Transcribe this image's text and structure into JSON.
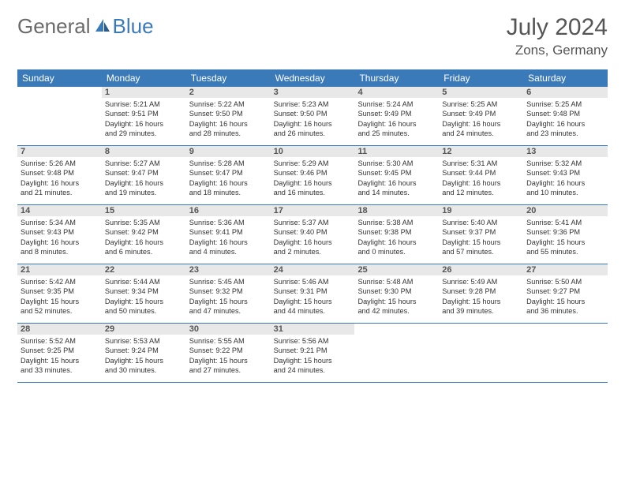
{
  "brand": {
    "part1": "General",
    "part2": "Blue"
  },
  "header": {
    "month_title": "July 2024",
    "location": "Zons, Germany"
  },
  "day_names": [
    "Sunday",
    "Monday",
    "Tuesday",
    "Wednesday",
    "Thursday",
    "Friday",
    "Saturday"
  ],
  "colors": {
    "accent": "#3b7ab8",
    "header_text": "#ffffff",
    "daybar": "#e8e8e8",
    "text": "#333333"
  },
  "layout": {
    "first_day_offset": 1,
    "days_in_month": 31
  },
  "days": [
    {
      "n": 1,
      "sunrise": "5:21 AM",
      "sunset": "9:51 PM",
      "dh": 16,
      "dm": 29
    },
    {
      "n": 2,
      "sunrise": "5:22 AM",
      "sunset": "9:50 PM",
      "dh": 16,
      "dm": 28
    },
    {
      "n": 3,
      "sunrise": "5:23 AM",
      "sunset": "9:50 PM",
      "dh": 16,
      "dm": 26
    },
    {
      "n": 4,
      "sunrise": "5:24 AM",
      "sunset": "9:49 PM",
      "dh": 16,
      "dm": 25
    },
    {
      "n": 5,
      "sunrise": "5:25 AM",
      "sunset": "9:49 PM",
      "dh": 16,
      "dm": 24
    },
    {
      "n": 6,
      "sunrise": "5:25 AM",
      "sunset": "9:48 PM",
      "dh": 16,
      "dm": 23
    },
    {
      "n": 7,
      "sunrise": "5:26 AM",
      "sunset": "9:48 PM",
      "dh": 16,
      "dm": 21
    },
    {
      "n": 8,
      "sunrise": "5:27 AM",
      "sunset": "9:47 PM",
      "dh": 16,
      "dm": 19
    },
    {
      "n": 9,
      "sunrise": "5:28 AM",
      "sunset": "9:47 PM",
      "dh": 16,
      "dm": 18
    },
    {
      "n": 10,
      "sunrise": "5:29 AM",
      "sunset": "9:46 PM",
      "dh": 16,
      "dm": 16
    },
    {
      "n": 11,
      "sunrise": "5:30 AM",
      "sunset": "9:45 PM",
      "dh": 16,
      "dm": 14
    },
    {
      "n": 12,
      "sunrise": "5:31 AM",
      "sunset": "9:44 PM",
      "dh": 16,
      "dm": 12
    },
    {
      "n": 13,
      "sunrise": "5:32 AM",
      "sunset": "9:43 PM",
      "dh": 16,
      "dm": 10
    },
    {
      "n": 14,
      "sunrise": "5:34 AM",
      "sunset": "9:43 PM",
      "dh": 16,
      "dm": 8
    },
    {
      "n": 15,
      "sunrise": "5:35 AM",
      "sunset": "9:42 PM",
      "dh": 16,
      "dm": 6
    },
    {
      "n": 16,
      "sunrise": "5:36 AM",
      "sunset": "9:41 PM",
      "dh": 16,
      "dm": 4
    },
    {
      "n": 17,
      "sunrise": "5:37 AM",
      "sunset": "9:40 PM",
      "dh": 16,
      "dm": 2
    },
    {
      "n": 18,
      "sunrise": "5:38 AM",
      "sunset": "9:38 PM",
      "dh": 16,
      "dm": 0
    },
    {
      "n": 19,
      "sunrise": "5:40 AM",
      "sunset": "9:37 PM",
      "dh": 15,
      "dm": 57
    },
    {
      "n": 20,
      "sunrise": "5:41 AM",
      "sunset": "9:36 PM",
      "dh": 15,
      "dm": 55
    },
    {
      "n": 21,
      "sunrise": "5:42 AM",
      "sunset": "9:35 PM",
      "dh": 15,
      "dm": 52
    },
    {
      "n": 22,
      "sunrise": "5:44 AM",
      "sunset": "9:34 PM",
      "dh": 15,
      "dm": 50
    },
    {
      "n": 23,
      "sunrise": "5:45 AM",
      "sunset": "9:32 PM",
      "dh": 15,
      "dm": 47
    },
    {
      "n": 24,
      "sunrise": "5:46 AM",
      "sunset": "9:31 PM",
      "dh": 15,
      "dm": 44
    },
    {
      "n": 25,
      "sunrise": "5:48 AM",
      "sunset": "9:30 PM",
      "dh": 15,
      "dm": 42
    },
    {
      "n": 26,
      "sunrise": "5:49 AM",
      "sunset": "9:28 PM",
      "dh": 15,
      "dm": 39
    },
    {
      "n": 27,
      "sunrise": "5:50 AM",
      "sunset": "9:27 PM",
      "dh": 15,
      "dm": 36
    },
    {
      "n": 28,
      "sunrise": "5:52 AM",
      "sunset": "9:25 PM",
      "dh": 15,
      "dm": 33
    },
    {
      "n": 29,
      "sunrise": "5:53 AM",
      "sunset": "9:24 PM",
      "dh": 15,
      "dm": 30
    },
    {
      "n": 30,
      "sunrise": "5:55 AM",
      "sunset": "9:22 PM",
      "dh": 15,
      "dm": 27
    },
    {
      "n": 31,
      "sunrise": "5:56 AM",
      "sunset": "9:21 PM",
      "dh": 15,
      "dm": 24
    }
  ],
  "labels": {
    "sunrise": "Sunrise:",
    "sunset": "Sunset:",
    "daylight_prefix": "Daylight:",
    "hours": "hours",
    "and": "and",
    "minutes": "minutes."
  }
}
